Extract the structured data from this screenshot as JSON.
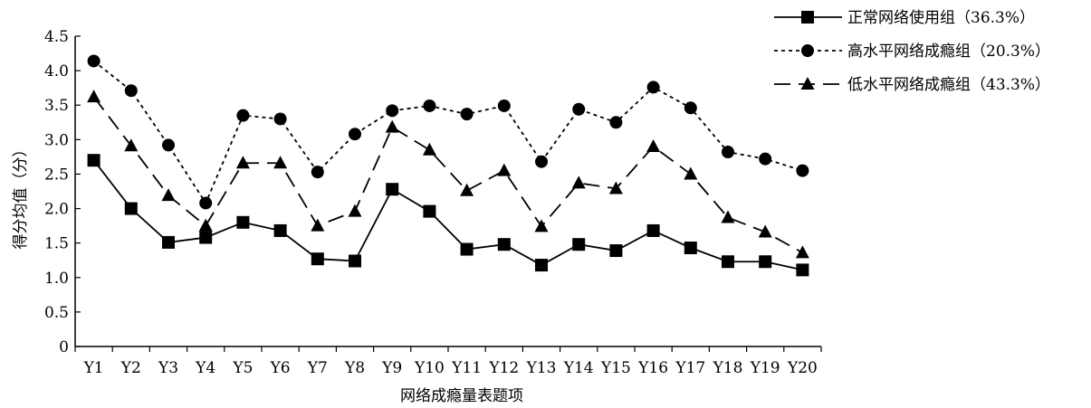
{
  "chart_data": {
    "type": "line",
    "title": "",
    "xlabel": "网络成瘾量表题项",
    "ylabel": "得分均值（分）",
    "ylim": [
      0,
      4.5
    ],
    "yticks": [
      0,
      0.5,
      1.0,
      1.5,
      2.0,
      2.5,
      3.0,
      3.5,
      4.0,
      4.5
    ],
    "ytick_labels": [
      "0",
      "0.5",
      "1.0",
      "1.5",
      "2.0",
      "2.5",
      "3.0",
      "3.5",
      "4.0",
      "4.5"
    ],
    "categories": [
      "Y1",
      "Y2",
      "Y3",
      "Y4",
      "Y5",
      "Y6",
      "Y7",
      "Y8",
      "Y9",
      "Y10",
      "Y11",
      "Y12",
      "Y13",
      "Y14",
      "Y15",
      "Y16",
      "Y17",
      "Y18",
      "Y19",
      "Y20"
    ],
    "grid": false,
    "legend_position": "top-right",
    "series": [
      {
        "name": "正常网络使用组（36.3%）",
        "marker": "square",
        "line_style": "solid",
        "values": [
          2.7,
          2.0,
          1.51,
          1.58,
          1.8,
          1.68,
          1.27,
          1.24,
          2.28,
          1.96,
          1.41,
          1.48,
          1.18,
          1.48,
          1.39,
          1.68,
          1.43,
          1.23,
          1.23,
          1.11
        ]
      },
      {
        "name": "高水平网络成瘾组（20.3%）",
        "marker": "circle",
        "line_style": "dotted",
        "values": [
          4.14,
          3.71,
          2.92,
          2.08,
          3.35,
          3.3,
          2.53,
          3.08,
          3.42,
          3.49,
          3.37,
          3.49,
          2.68,
          3.44,
          3.25,
          3.76,
          3.46,
          2.82,
          2.72,
          2.55
        ]
      },
      {
        "name": "低水平网络成瘾组（43.3%）",
        "marker": "triangle",
        "line_style": "dashed",
        "values": [
          3.62,
          2.91,
          2.19,
          1.75,
          2.66,
          2.66,
          1.75,
          1.96,
          3.18,
          2.85,
          2.26,
          2.55,
          1.74,
          2.37,
          2.29,
          2.9,
          2.5,
          1.87,
          1.66,
          1.36
        ]
      }
    ]
  }
}
